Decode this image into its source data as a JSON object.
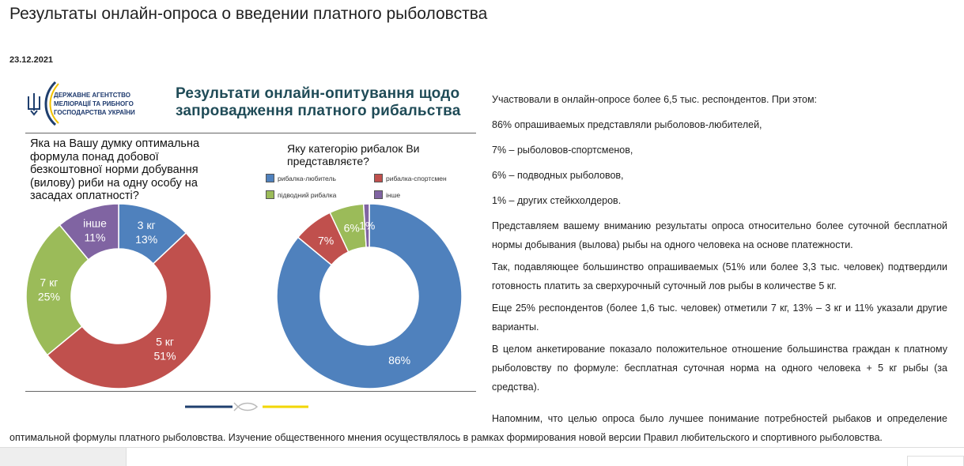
{
  "page": {
    "title": "Результаты онлайн-опроса о введении платного рыболовства",
    "date": "23.12.2021"
  },
  "infographic": {
    "agency": [
      "ДЕРЖАВНЕ АГЕНТСТВО",
      "МЕЛІОРАЦІЇ ТА РИБНОГО",
      "ГОСПОДАРСТВА УКРАЇНИ"
    ],
    "title": [
      "Результати онлайн-опитування щодо",
      "запровадження платного рибальства"
    ],
    "colors": {
      "blue": "#4f81bd",
      "red": "#c0504d",
      "green": "#9bbb59",
      "purple": "#8064a2",
      "navy": "#1f3f6e",
      "yellow": "#f2d600"
    }
  },
  "chart_data": [
    {
      "type": "pie",
      "donut": true,
      "title": "Яка на Вашу думку оптимальна формула понад добової безкоштовної норми добування (вилову) риби на одну особу на засадах оплатності?",
      "title_lines": [
        "Яка на Вашу думку оптимальна",
        "формула понад добової",
        "безкоштовної норми добування",
        "(вилову) риби на одну особу на",
        "засадах оплатності?"
      ],
      "slices": [
        {
          "label": "3 кг",
          "value": 13,
          "text": "13%",
          "color": "#4f81bd"
        },
        {
          "label": "5 кг",
          "value": 51,
          "text": "51%",
          "color": "#c0504d"
        },
        {
          "label": "7 кг",
          "value": 25,
          "text": "25%",
          "color": "#9bbb59"
        },
        {
          "label": "інше",
          "value": 11,
          "text": "11%",
          "color": "#8064a2"
        }
      ]
    },
    {
      "type": "pie",
      "donut": true,
      "title": "Яку категорію рибалок Ви представляєте?",
      "title_lines": [
        "Яку категорію рибалок Ви",
        "представляєте?"
      ],
      "legend": [
        "рибалка-любитель",
        "рибалка-спортсмен",
        "підводний рибалка",
        "інше"
      ],
      "slices": [
        {
          "label": "рибалка-любитель",
          "value": 86,
          "text": "86%",
          "color": "#4f81bd"
        },
        {
          "label": "рибалка-спортсмен",
          "value": 7,
          "text": "7%",
          "color": "#c0504d"
        },
        {
          "label": "підводний рибалка",
          "value": 6,
          "text": "6%",
          "color": "#9bbb59"
        },
        {
          "label": "інше",
          "value": 1,
          "text": "1%",
          "color": "#8064a2"
        }
      ]
    }
  ],
  "article": {
    "paragraphs": [
      "Участвовали в онлайн-опросе более 6,5 тыс. респондентов. При этом:",
      "86% опрашиваемых представляли рыболовов-любителей,",
      "7% – рыболовов-спортсменов,",
      "6% – подводных рыболовов,",
      "1% – других стейкхолдеров.",
      "Представляем вашему вниманию результаты опроса относительно более суточной бесплатной нормы добывания (вылова) рыбы на одного человека на основе платежности.",
      "Так, подавляющее большинство опрашиваемых (51% или более 3,3 тыс. человек) подтвердили готовность платить за сверхурочный суточный лов рыбы в количестве 5 кг.",
      "Еще 25% респондентов (более 1,6 тыс. человек) отметили 7 кг, 13% – 3 кг и 11% указали другие варианты.",
      "В целом анкетирование показало положительное отношение большинства граждан к платному рыболовству по формуле: бесплатная суточная норма на одного человека + 5 кг рыбы (за средства)."
    ],
    "last": "Напомним, что целью опроса было лучшее понимание потребностей рыбаков и определение оптимальной формулы платного рыболовства. Изучение общественного мнения осуществлялось в рамках формирования новой версии Правил любительского и спортивного рыболовства."
  }
}
